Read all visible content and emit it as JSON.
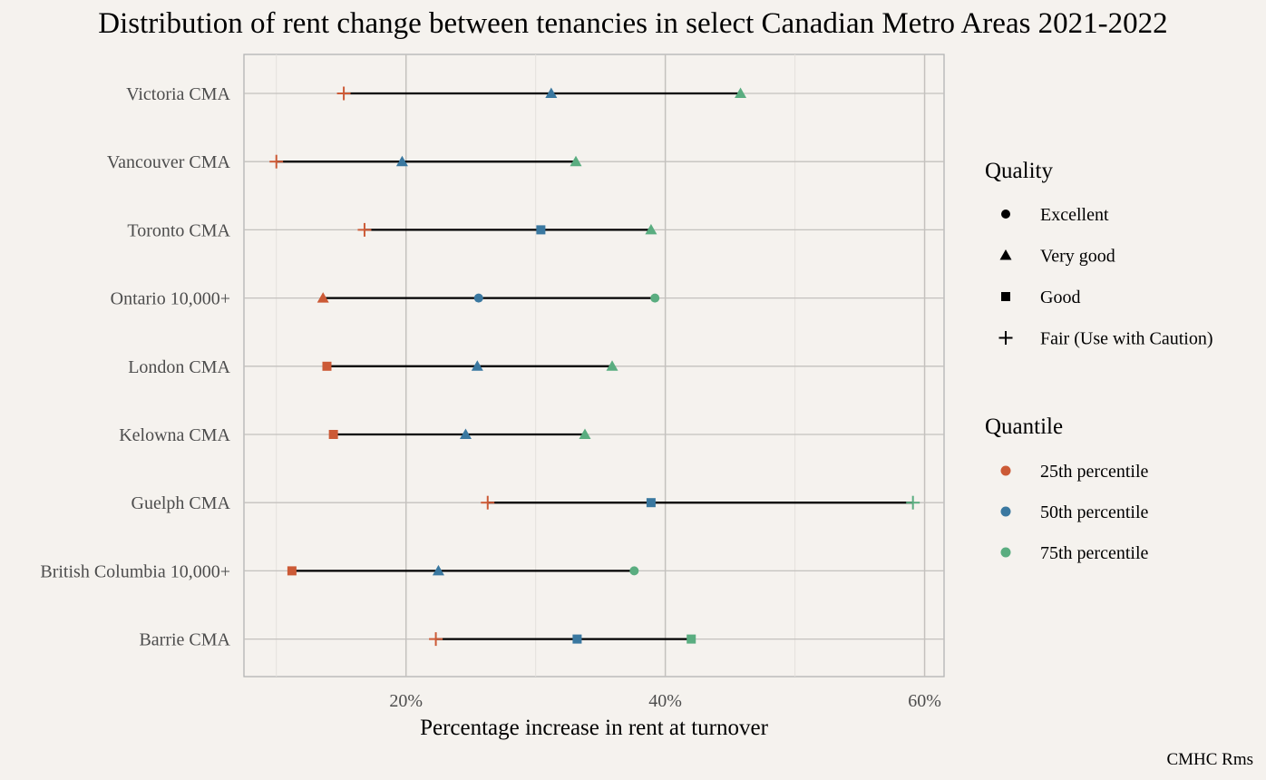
{
  "title": "Distribution of rent change between tenancies in select Canadian Metro Areas 2021-2022",
  "caption": "CMHC Rms",
  "chart_data": {
    "type": "scatter",
    "subtype": "dumbbell",
    "title": "Distribution of rent change between tenancies in select Canadian Metro Areas 2021-2022",
    "xlabel": "Percentage increase in rent at turnover",
    "ylabel": "",
    "xlim": [
      7.5,
      61.5
    ],
    "x_ticks": [
      20,
      40,
      60
    ],
    "x_tick_labels": [
      "20%",
      "40%",
      "60%"
    ],
    "grid": true,
    "legend_position": "right",
    "colors": {
      "25th percentile": "#cc5a36",
      "50th percentile": "#3a78a0",
      "75th percentile": "#5aad80"
    },
    "categories": [
      "Victoria CMA",
      "Vancouver CMA",
      "Toronto CMA",
      "Ontario 10,000+",
      "London CMA",
      "Kelowna CMA",
      "Guelph CMA",
      "British Columbia 10,000+",
      "Barrie CMA"
    ],
    "series": [
      {
        "name": "25th percentile",
        "values": [
          15.2,
          10.0,
          16.8,
          13.6,
          13.9,
          14.4,
          26.3,
          11.2,
          22.3
        ],
        "quality": [
          "Fair (Use with Caution)",
          "Fair (Use with Caution)",
          "Fair (Use with Caution)",
          "Very good",
          "Good",
          "Good",
          "Fair (Use with Caution)",
          "Good",
          "Fair (Use with Caution)"
        ]
      },
      {
        "name": "50th percentile",
        "values": [
          31.2,
          19.7,
          30.4,
          25.6,
          25.5,
          24.6,
          38.9,
          22.5,
          33.2
        ],
        "quality": [
          "Very good",
          "Very good",
          "Good",
          "Excellent",
          "Very good",
          "Very good",
          "Good",
          "Very good",
          "Good"
        ]
      },
      {
        "name": "75th percentile",
        "values": [
          45.8,
          33.1,
          38.9,
          39.2,
          35.9,
          33.8,
          59.1,
          37.6,
          42.0
        ],
        "quality": [
          "Very good",
          "Very good",
          "Very good",
          "Excellent",
          "Very good",
          "Very good",
          "Fair (Use with Caution)",
          "Excellent",
          "Good"
        ]
      }
    ],
    "legend": {
      "quality_title": "Quality",
      "quality_items": [
        {
          "label": "Excellent",
          "shape": "circle"
        },
        {
          "label": "Very good",
          "shape": "triangle"
        },
        {
          "label": "Good",
          "shape": "square"
        },
        {
          "label": "Fair (Use with Caution)",
          "shape": "plus"
        }
      ],
      "quantile_title": "Quantile",
      "quantile_items": [
        {
          "label": "25th percentile"
        },
        {
          "label": "50th percentile"
        },
        {
          "label": "75th percentile"
        }
      ]
    }
  }
}
